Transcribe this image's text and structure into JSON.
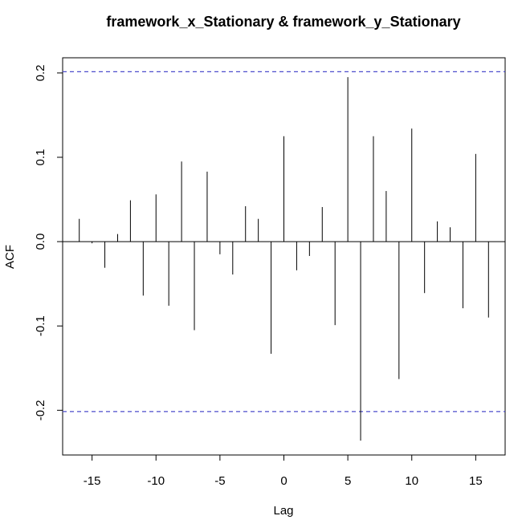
{
  "chart_data": {
    "type": "bar",
    "title": "framework_x_Stationary & framework_y_Stationary",
    "xlabel": "Lag",
    "ylabel": "ACF",
    "xlim": [
      -17.3,
      17.3
    ],
    "ylim": [
      -0.253,
      0.218
    ],
    "x_ticks": [
      {
        "value": -15,
        "label": "-15"
      },
      {
        "value": -10,
        "label": "-10"
      },
      {
        "value": -5,
        "label": "-5"
      },
      {
        "value": 0,
        "label": "0"
      },
      {
        "value": 5,
        "label": "5"
      },
      {
        "value": 10,
        "label": "10"
      },
      {
        "value": 15,
        "label": "15"
      }
    ],
    "y_ticks": [
      {
        "value": -0.2,
        "label": "-0.2"
      },
      {
        "value": -0.1,
        "label": "-0.1"
      },
      {
        "value": 0.0,
        "label": "0.0"
      },
      {
        "value": 0.1,
        "label": "0.1"
      },
      {
        "value": 0.2,
        "label": "0.2"
      }
    ],
    "lags": [
      -16,
      -15,
      -14,
      -13,
      -12,
      -11,
      -10,
      -9,
      -8,
      -7,
      -6,
      -5,
      -4,
      -3,
      -2,
      -1,
      0,
      1,
      2,
      3,
      4,
      5,
      6,
      7,
      8,
      9,
      10,
      11,
      12,
      13,
      14,
      15,
      16
    ],
    "values": [
      0.027,
      -0.002,
      -0.031,
      0.009,
      0.049,
      -0.064,
      0.056,
      -0.076,
      0.095,
      -0.105,
      0.083,
      -0.015,
      -0.039,
      0.042,
      0.027,
      -0.133,
      0.125,
      -0.034,
      -0.017,
      0.041,
      -0.099,
      0.195,
      -0.236,
      0.125,
      0.06,
      -0.163,
      0.134,
      -0.061,
      0.024,
      0.017,
      -0.079,
      0.104,
      -0.09
    ],
    "confidence_bounds": [
      0.2015,
      -0.2015
    ],
    "colors": {
      "bars": "#000000",
      "zero_line": "#000000",
      "confidence": "#4d4dcc",
      "frame": "#000000"
    },
    "grid": false
  }
}
